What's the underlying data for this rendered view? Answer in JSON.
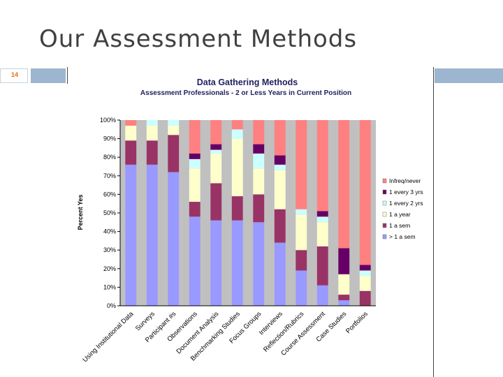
{
  "slide": {
    "title": "Our Assessment Methods",
    "number": "14"
  },
  "chart_data": {
    "type": "bar",
    "stacked": true,
    "title": "Data Gathering Methods",
    "subtitle": "Assessment Professionals - 2 or Less Years in Current Position",
    "ylabel": "Percent Yes",
    "xlabel": "",
    "ylim": [
      0,
      100
    ],
    "yticks": [
      "0%",
      "10%",
      "20%",
      "30%",
      "40%",
      "50%",
      "60%",
      "70%",
      "80%",
      "90%",
      "100%"
    ],
    "grid": false,
    "legend_position": "right",
    "categories": [
      "Using Institutional Data",
      "Surveys",
      "Participant #s",
      "Observations",
      "Document Analysis",
      "Benchmarking Studies",
      "Focus Groups",
      "Interviews",
      "Reflection/Rubrics",
      "Course Assessment",
      "Case Studies",
      "Portfolios"
    ],
    "series": [
      {
        "name": "> 1 a sem",
        "color": "#9999ff",
        "values": [
          76,
          76,
          72,
          48,
          46,
          46,
          45,
          34,
          19,
          11,
          3,
          0
        ]
      },
      {
        "name": "1 a sem",
        "color": "#993366",
        "values": [
          13,
          13,
          20,
          8,
          20,
          13,
          15,
          18,
          11,
          21,
          3,
          8
        ]
      },
      {
        "name": "1 a year",
        "color": "#ffffcc",
        "values": [
          8,
          8,
          5,
          18,
          16,
          31,
          14,
          21,
          19,
          13,
          11,
          8
        ]
      },
      {
        "name": "1 every 2 yrs",
        "color": "#ccffff",
        "values": [
          0,
          3,
          3,
          5,
          2,
          5,
          8,
          3,
          3,
          3,
          0,
          3
        ]
      },
      {
        "name": "1 every 3 yrs",
        "color": "#660066",
        "values": [
          0,
          0,
          0,
          3,
          3,
          0,
          5,
          5,
          0,
          3,
          14,
          3
        ]
      },
      {
        "name": "Infreq/never",
        "color": "#ff8080",
        "values": [
          3,
          0,
          0,
          18,
          13,
          5,
          13,
          19,
          48,
          49,
          69,
          78
        ]
      }
    ]
  }
}
